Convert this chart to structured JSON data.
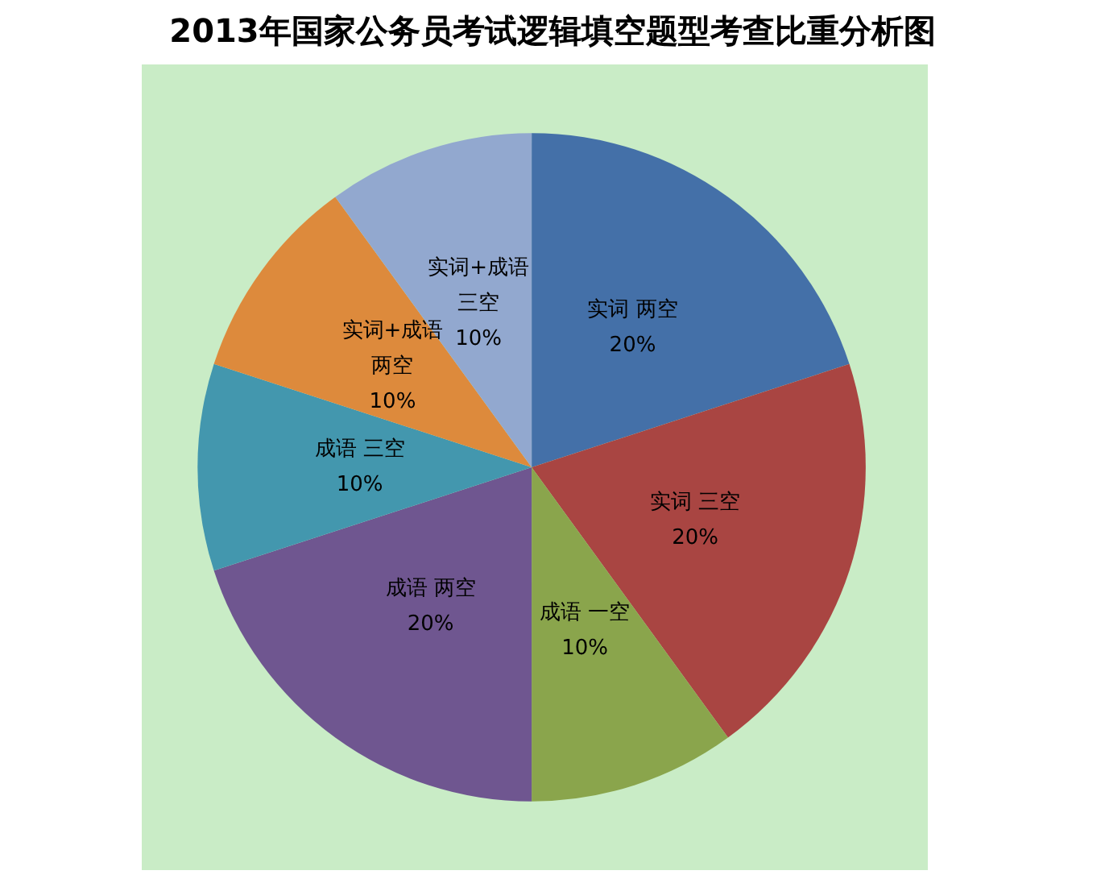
{
  "chart_data": {
    "type": "pie",
    "title": "2013年国家公务员考试逻辑填空题型考查比重分析图",
    "categories": [
      "实词 两空",
      "实词 三空",
      "成语 一空",
      "成语 两空",
      "成语 三空",
      "实词+成语两空",
      "实词+成语三空"
    ],
    "values": [
      20,
      20,
      10,
      20,
      10,
      10,
      10
    ],
    "value_labels": [
      "20%",
      "20%",
      "10%",
      "20%",
      "10%",
      "10%",
      "10%"
    ],
    "colors": [
      "#4470a8",
      "#a94542",
      "#8aa54c",
      "#6f5690",
      "#4397ae",
      "#dd8a3c",
      "#92a8cf"
    ],
    "legend": false
  }
}
